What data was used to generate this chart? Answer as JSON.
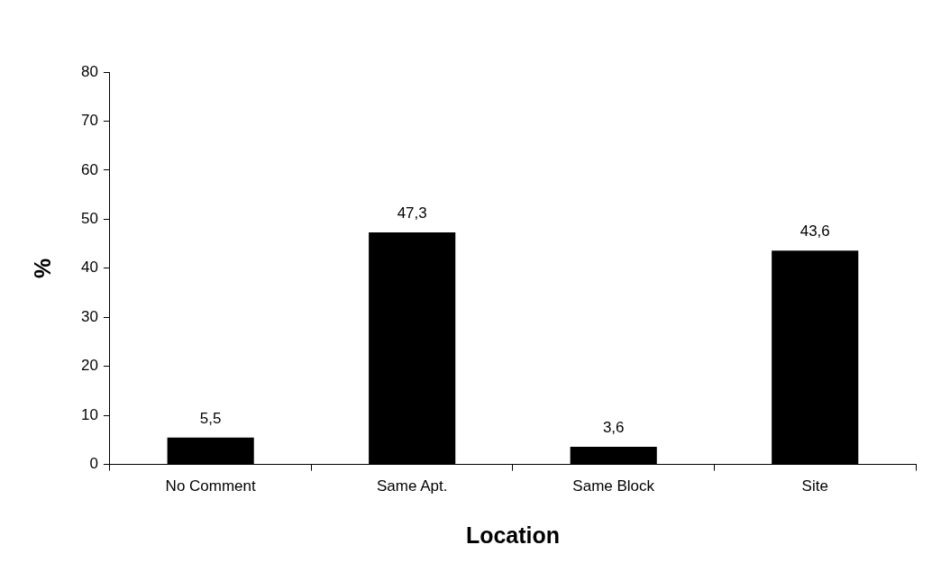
{
  "chart_data": {
    "type": "bar",
    "xlabel": "Location",
    "ylabel": "%",
    "categories": [
      "No Comment",
      "Same Apt.",
      "Same Block",
      "Site"
    ],
    "values": [
      5.5,
      47.3,
      3.6,
      43.6
    ],
    "color": "#000000",
    "value_labels": [
      "5,5",
      "47,3",
      "3,6",
      "43,6"
    ],
    "ylim": [
      0,
      80
    ],
    "yticks": [
      0,
      10,
      20,
      30,
      40,
      50,
      60,
      70,
      80
    ],
    "grid": false,
    "legend": false
  }
}
